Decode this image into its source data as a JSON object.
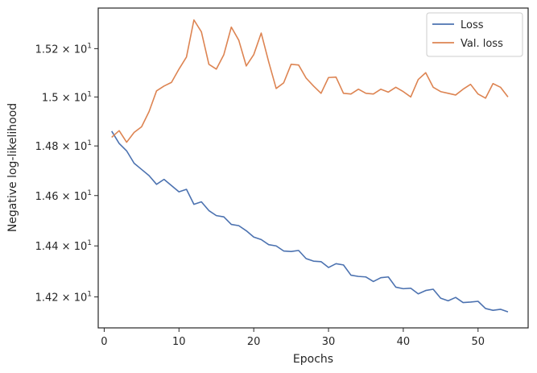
{
  "chart_data": {
    "type": "line",
    "title": "",
    "xlabel": "Epochs",
    "ylabel": "Negative log-likelihood",
    "y_scale": "log",
    "xlim": [
      -0.8,
      56.7
    ],
    "ylim": [
      14.08,
      15.37
    ],
    "x_ticks": [
      0,
      10,
      20,
      30,
      40,
      50
    ],
    "x_tick_labels": [
      "0",
      "10",
      "20",
      "30",
      "40",
      "50"
    ],
    "y_ticks": [
      14.2,
      14.4,
      14.6,
      14.8,
      15.0,
      15.2
    ],
    "y_tick_mantissas": [
      "1.42",
      "1.44",
      "1.46",
      "1.48",
      "1.5",
      "1.52"
    ],
    "y_tick_base": "× 10",
    "y_tick_exponent": "1",
    "grid": false,
    "legend_position": "top-right",
    "x": [
      1,
      2,
      3,
      4,
      5,
      6,
      7,
      8,
      9,
      10,
      11,
      12,
      13,
      14,
      15,
      16,
      17,
      18,
      19,
      20,
      21,
      22,
      23,
      24,
      25,
      26,
      27,
      28,
      29,
      30,
      31,
      32,
      33,
      34,
      35,
      36,
      37,
      38,
      39,
      40,
      41,
      42,
      43,
      44,
      45,
      46,
      47,
      48,
      49,
      50,
      51,
      52,
      53,
      54
    ],
    "series": [
      {
        "name": "Loss",
        "color": "#4c72b0",
        "values": [
          14.86,
          14.81,
          14.78,
          14.73,
          14.705,
          14.68,
          14.645,
          14.665,
          14.64,
          14.615,
          14.625,
          14.565,
          14.575,
          14.54,
          14.52,
          14.515,
          14.485,
          14.48,
          14.46,
          14.435,
          14.425,
          14.405,
          14.4,
          14.38,
          14.378,
          14.382,
          14.35,
          14.34,
          14.338,
          14.315,
          14.33,
          14.325,
          14.285,
          14.28,
          14.278,
          14.26,
          14.275,
          14.278,
          14.238,
          14.232,
          14.234,
          14.212,
          14.225,
          14.23,
          14.195,
          14.185,
          14.198,
          14.178,
          14.18,
          14.183,
          14.155,
          14.148,
          14.152,
          14.142
        ]
      },
      {
        "name": "Val. loss",
        "color": "#dd8452",
        "values": [
          14.835,
          14.862,
          14.815,
          14.855,
          14.878,
          14.94,
          15.025,
          15.045,
          15.06,
          15.115,
          15.165,
          15.32,
          15.27,
          15.135,
          15.115,
          15.175,
          15.29,
          15.235,
          15.128,
          15.175,
          15.265,
          15.145,
          15.035,
          15.058,
          15.135,
          15.132,
          15.078,
          15.045,
          15.015,
          15.08,
          15.082,
          15.015,
          15.012,
          15.032,
          15.015,
          15.012,
          15.032,
          15.02,
          15.04,
          15.022,
          15.0,
          15.072,
          15.1,
          15.04,
          15.022,
          15.015,
          15.008,
          15.032,
          15.052,
          15.012,
          14.995,
          15.055,
          15.04,
          15.0
        ]
      }
    ]
  }
}
